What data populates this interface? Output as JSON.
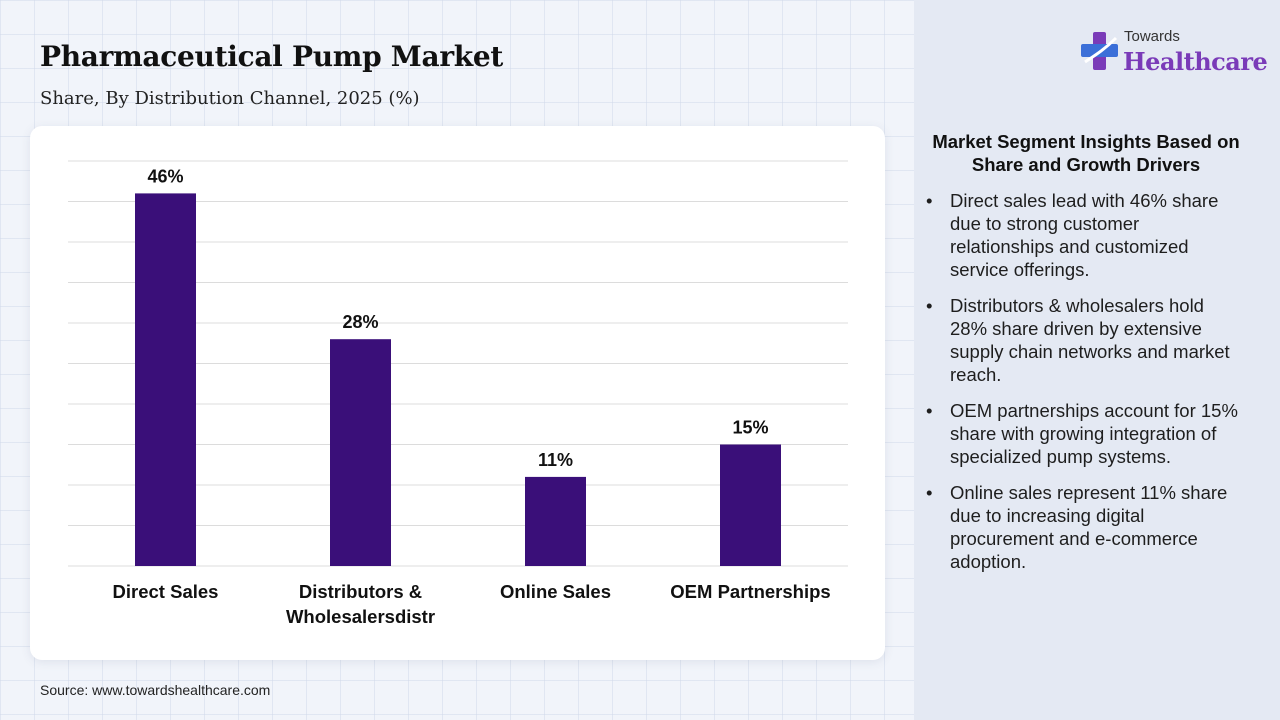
{
  "header": {
    "title": "Pharmaceutical Pump Market",
    "subtitle": "Share, By Distribution Channel, 2025 (%)"
  },
  "logo": {
    "top_text": "Towards",
    "main_text": "Healthcare"
  },
  "colors": {
    "bar": "#3a0f79",
    "grid": "#dcdcdc",
    "logo_purple": "#7a3bb8",
    "logo_blue": "#3b6fd8"
  },
  "chart_data": {
    "type": "bar",
    "title": "",
    "xlabel": "",
    "ylabel": "",
    "ylim": [
      0,
      50
    ],
    "grid": true,
    "categories": [
      [
        "Direct Sales"
      ],
      [
        "Distributors &",
        "Wholesalersdistr"
      ],
      [
        "Online Sales"
      ],
      [
        "OEM Partnerships"
      ]
    ],
    "values": [
      46,
      28,
      11,
      15
    ],
    "value_labels": [
      "46%",
      "28%",
      "11%",
      "15%"
    ]
  },
  "insights": {
    "title": "Market Segment Insights Based on Share and Growth Drivers",
    "items": [
      "Direct sales lead with 46% share due to strong customer relationships and customized service offerings.",
      "Distributors & wholesalers hold 28% share driven by extensive supply chain networks and market reach.",
      "OEM partnerships account for 15% share with growing integration of specialized pump systems.",
      "Online sales represent 11% share due to increasing digital procurement and e-commerce adoption."
    ]
  },
  "source": "Source: www.towardshealthcare.com"
}
